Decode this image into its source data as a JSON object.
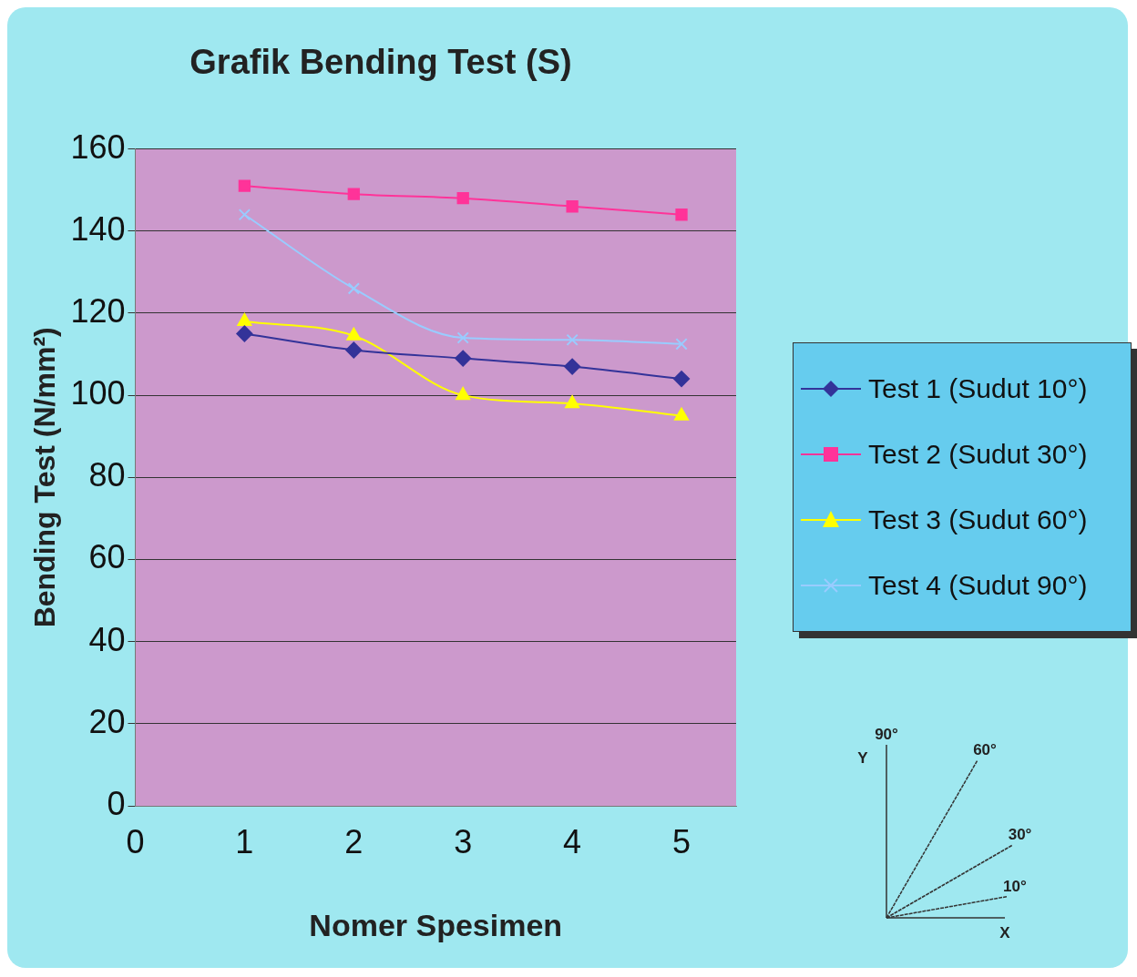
{
  "chart_data": {
    "type": "line",
    "title": "Grafik Bending Test (S)",
    "xlabel": "Nomer Spesimen",
    "ylabel": "Bending Test (N/mm²)",
    "x": [
      1,
      2,
      3,
      4,
      5
    ],
    "series": [
      {
        "name": "Test 1 (Sudut 10°)",
        "color": "#333399",
        "marker": "diamond",
        "values": [
          115,
          111,
          109,
          107,
          104
        ]
      },
      {
        "name": "Test 2 (Sudut 30°)",
        "color": "#ff3399",
        "marker": "square",
        "values": [
          151,
          149,
          148,
          146,
          144
        ]
      },
      {
        "name": "Test 3 (Sudut 60°)",
        "color": "#ffff00",
        "marker": "triangle",
        "values": [
          118,
          114.5,
          100,
          98,
          95
        ]
      },
      {
        "name": "Test 4 (Sudut 90°)",
        "color": "#99ccff",
        "marker": "cross",
        "values": [
          144,
          126,
          114,
          113.5,
          112.5
        ]
      }
    ],
    "xlim": [
      0,
      5.5
    ],
    "xticks": [
      0,
      1,
      2,
      3,
      4,
      5
    ],
    "ylim": [
      0,
      160
    ],
    "yticks": [
      0,
      20,
      40,
      60,
      80,
      100,
      120,
      140,
      160
    ],
    "grid": "y",
    "legend": "right",
    "annotations": [
      "90°",
      "60°",
      "30°",
      "10°",
      "Y",
      "X"
    ]
  }
}
